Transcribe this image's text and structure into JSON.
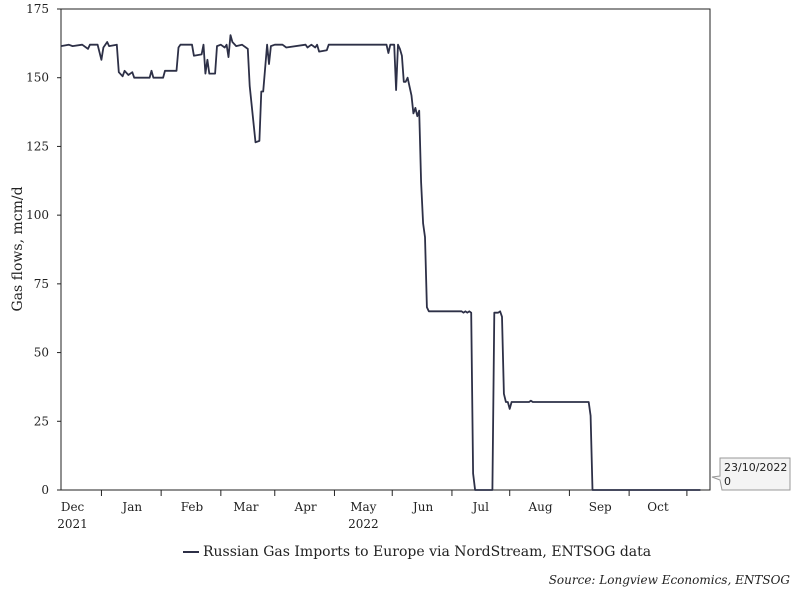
{
  "chart_data": {
    "type": "line",
    "ylabel": "Gas flows, mcm/d",
    "ylim": [
      0,
      175
    ],
    "yticks": [
      0,
      25,
      50,
      75,
      100,
      125,
      150,
      175
    ],
    "xlim": [
      "2021-11-25",
      "2022-10-28"
    ],
    "month_ticks": [
      {
        "date": "2021-12-01",
        "label": "Dec",
        "year": "2021"
      },
      {
        "date": "2022-01-01",
        "label": "Jan",
        "year": ""
      },
      {
        "date": "2022-02-01",
        "label": "Feb",
        "year": ""
      },
      {
        "date": "2022-03-01",
        "label": "Mar",
        "year": ""
      },
      {
        "date": "2022-04-01",
        "label": "Apr",
        "year": ""
      },
      {
        "date": "2022-05-01",
        "label": "May",
        "year": "2022"
      },
      {
        "date": "2022-06-01",
        "label": "Jun",
        "year": ""
      },
      {
        "date": "2022-07-01",
        "label": "Jul",
        "year": ""
      },
      {
        "date": "2022-08-01",
        "label": "Aug",
        "year": ""
      },
      {
        "date": "2022-09-01",
        "label": "Sep",
        "year": ""
      },
      {
        "date": "2022-10-01",
        "label": "Oct",
        "year": ""
      }
    ],
    "separator_dates": [
      "2021-12-16",
      "2022-01-16",
      "2022-02-16",
      "2022-03-16",
      "2022-04-16",
      "2022-05-16",
      "2022-06-16",
      "2022-07-16",
      "2022-08-16",
      "2022-09-16",
      "2022-10-16"
    ],
    "series": [
      {
        "name": "Russian Gas Imports to Europe via NordStream, ENTSOG data",
        "color": "#2d3047",
        "points": [
          [
            "2021-11-25",
            161.5
          ],
          [
            "2021-11-29",
            162
          ],
          [
            "2021-12-01",
            161.5
          ],
          [
            "2021-12-06",
            162
          ],
          [
            "2021-12-09",
            160.5
          ],
          [
            "2021-12-10",
            162
          ],
          [
            "2021-12-14",
            162
          ],
          [
            "2021-12-16",
            156.5
          ],
          [
            "2021-12-17",
            161
          ],
          [
            "2021-12-19",
            163
          ],
          [
            "2021-12-20",
            161.5
          ],
          [
            "2021-12-24",
            162
          ],
          [
            "2021-12-25",
            152
          ],
          [
            "2021-12-27",
            150.5
          ],
          [
            "2021-12-28",
            152.5
          ],
          [
            "2021-12-30",
            151
          ],
          [
            "2022-01-01",
            152
          ],
          [
            "2022-01-02",
            150
          ],
          [
            "2022-01-10",
            150
          ],
          [
            "2022-01-11",
            152.5
          ],
          [
            "2022-01-12",
            150
          ],
          [
            "2022-01-17",
            150
          ],
          [
            "2022-01-18",
            152.5
          ],
          [
            "2022-01-24",
            152.5
          ],
          [
            "2022-01-25",
            161
          ],
          [
            "2022-01-26",
            162
          ],
          [
            "2022-02-01",
            162
          ],
          [
            "2022-02-02",
            158
          ],
          [
            "2022-02-06",
            158.5
          ],
          [
            "2022-02-07",
            162
          ],
          [
            "2022-02-08",
            151.5
          ],
          [
            "2022-02-09",
            156.5
          ],
          [
            "2022-02-10",
            151.5
          ],
          [
            "2022-02-13",
            151.5
          ],
          [
            "2022-02-14",
            161.5
          ],
          [
            "2022-02-16",
            162
          ],
          [
            "2022-02-18",
            161
          ],
          [
            "2022-02-19",
            162
          ],
          [
            "2022-02-20",
            157.5
          ],
          [
            "2022-02-21",
            165.5
          ],
          [
            "2022-02-22",
            163
          ],
          [
            "2022-02-24",
            161.5
          ],
          [
            "2022-02-27",
            162
          ],
          [
            "2022-03-01",
            161
          ],
          [
            "2022-03-02",
            160.5
          ],
          [
            "2022-03-03",
            147
          ],
          [
            "2022-03-06",
            126.5
          ],
          [
            "2022-03-08",
            127
          ],
          [
            "2022-03-09",
            145
          ],
          [
            "2022-03-10",
            145
          ],
          [
            "2022-03-12",
            162
          ],
          [
            "2022-03-13",
            155
          ],
          [
            "2022-03-14",
            161.5
          ],
          [
            "2022-03-16",
            162
          ],
          [
            "2022-03-20",
            162
          ],
          [
            "2022-03-22",
            161
          ],
          [
            "2022-04-01",
            162
          ],
          [
            "2022-04-02",
            161
          ],
          [
            "2022-04-04",
            162
          ],
          [
            "2022-04-06",
            161
          ],
          [
            "2022-04-07",
            162
          ],
          [
            "2022-04-08",
            159.5
          ],
          [
            "2022-04-12",
            160
          ],
          [
            "2022-04-13",
            162
          ],
          [
            "2022-04-20",
            162
          ],
          [
            "2022-05-13",
            162
          ],
          [
            "2022-05-14",
            159
          ],
          [
            "2022-05-15",
            162
          ],
          [
            "2022-05-17",
            162
          ],
          [
            "2022-05-18",
            145.5
          ],
          [
            "2022-05-19",
            162
          ],
          [
            "2022-05-20",
            160.5
          ],
          [
            "2022-05-21",
            158
          ],
          [
            "2022-05-22",
            148.5
          ],
          [
            "2022-05-23",
            148.5
          ],
          [
            "2022-05-24",
            150
          ],
          [
            "2022-05-26",
            143.5
          ],
          [
            "2022-05-27",
            137
          ],
          [
            "2022-05-28",
            139
          ],
          [
            "2022-05-29",
            136
          ],
          [
            "2022-05-30",
            138
          ],
          [
            "2022-05-31",
            112
          ],
          [
            "2022-06-01",
            97
          ],
          [
            "2022-06-02",
            92
          ],
          [
            "2022-06-03",
            66.5
          ],
          [
            "2022-06-04",
            65
          ],
          [
            "2022-06-06",
            65
          ],
          [
            "2022-06-21",
            65
          ],
          [
            "2022-06-22",
            64.5
          ],
          [
            "2022-06-23",
            65
          ],
          [
            "2022-06-24",
            64.5
          ],
          [
            "2022-06-25",
            65
          ],
          [
            "2022-06-26",
            64.5
          ],
          [
            "2022-06-27",
            6
          ],
          [
            "2022-06-28",
            0
          ],
          [
            "2022-07-07",
            0
          ],
          [
            "2022-07-08",
            64.5
          ],
          [
            "2022-07-10",
            64.5
          ],
          [
            "2022-07-11",
            65
          ],
          [
            "2022-07-12",
            63
          ],
          [
            "2022-07-13",
            35
          ],
          [
            "2022-07-14",
            32
          ],
          [
            "2022-07-15",
            32
          ],
          [
            "2022-07-16",
            29.5
          ],
          [
            "2022-07-17",
            32
          ],
          [
            "2022-07-18",
            32
          ],
          [
            "2022-07-26",
            32
          ],
          [
            "2022-07-27",
            32.5
          ],
          [
            "2022-07-28",
            32
          ],
          [
            "2022-08-02",
            32
          ],
          [
            "2022-08-09",
            32
          ],
          [
            "2022-08-24",
            32
          ],
          [
            "2022-08-26",
            32
          ],
          [
            "2022-08-27",
            27
          ],
          [
            "2022-08-28",
            0
          ],
          [
            "2022-09-01",
            0
          ],
          [
            "2022-10-23",
            0
          ]
        ]
      }
    ],
    "last_point": {
      "date": "2022-10-23",
      "value": 0,
      "label_date": "23/10/2022",
      "label_value": "0"
    },
    "legend": "bottom-center",
    "grid": false
  },
  "source": "Source: Longview Economics, ENTSOG"
}
